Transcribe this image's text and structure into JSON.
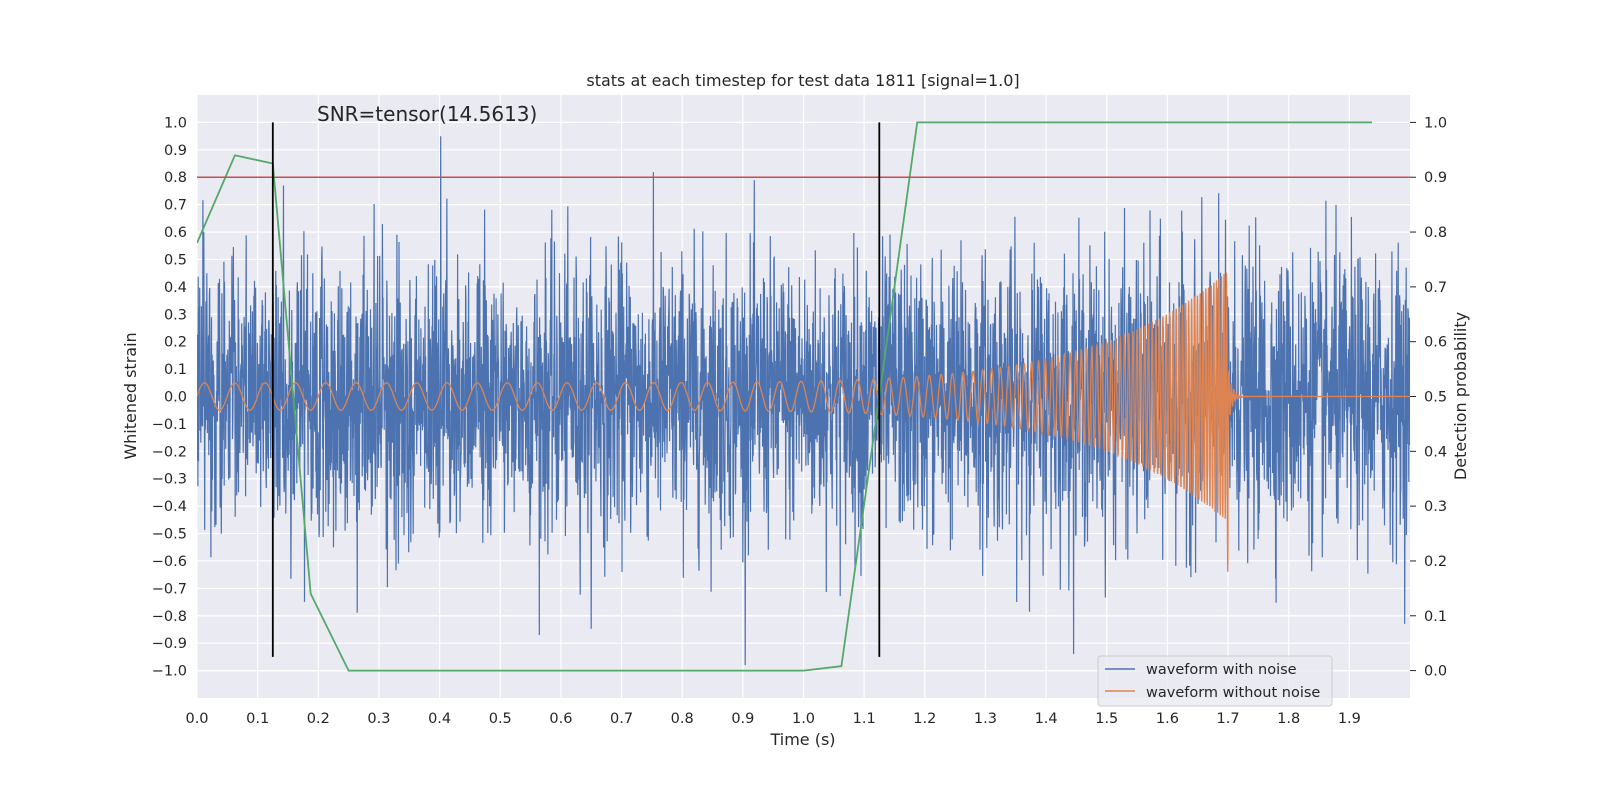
{
  "chart_data": {
    "type": "line",
    "title": "stats at each timestep for test data 1811 [signal=1.0]",
    "annotation": "SNR=tensor(14.5613)",
    "xlabel": "Time (s)",
    "ylabel": "Whitened strain",
    "y2label": "Detection probability",
    "xlim": [
      0.0,
      2.0
    ],
    "ylim": [
      -1.1,
      1.1
    ],
    "y2lim": [
      -0.05,
      1.05
    ],
    "x_ticks": [
      "0.0",
      "0.1",
      "0.2",
      "0.3",
      "0.4",
      "0.5",
      "0.6",
      "0.7",
      "0.8",
      "0.9",
      "1.0",
      "1.1",
      "1.2",
      "1.3",
      "1.4",
      "1.5",
      "1.6",
      "1.7",
      "1.8",
      "1.9"
    ],
    "y_ticks": [
      "1.0",
      "0.9",
      "0.8",
      "0.7",
      "0.6",
      "0.5",
      "0.4",
      "0.3",
      "0.2",
      "0.1",
      "0.0",
      "−0.1",
      "−0.2",
      "−0.3",
      "−0.4",
      "−0.5",
      "−0.6",
      "−0.7",
      "−0.8",
      "−0.9",
      "−1.0"
    ],
    "y2_ticks": [
      "1.0",
      "0.9",
      "0.8",
      "0.7",
      "0.6",
      "0.5",
      "0.4",
      "0.3",
      "0.2",
      "0.1",
      "0.0"
    ],
    "threshold": {
      "y2": 0.9,
      "color": "#c44e52"
    },
    "vlines": [
      {
        "x": 0.125,
        "ymin": -0.95,
        "ymax": 1.0
      },
      {
        "x": 1.125,
        "ymin": -0.95,
        "ymax": 1.0
      }
    ],
    "detection_probability": {
      "color": "#55a868",
      "x": [
        0.0,
        0.0625,
        0.125,
        0.1875,
        0.25,
        0.3125,
        0.375,
        0.4375,
        0.5,
        0.5625,
        0.625,
        0.6875,
        0.75,
        0.8125,
        0.875,
        0.9375,
        1.0,
        1.0625,
        1.125,
        1.1875,
        1.25,
        1.3125,
        1.375,
        1.4375,
        1.5,
        1.5625,
        1.625,
        1.6875,
        1.75,
        1.8125,
        1.875,
        1.9375
      ],
      "values": [
        0.78,
        0.94,
        0.925,
        0.14,
        0.0,
        0.0,
        0.0,
        0.0,
        0.0,
        0.0,
        0.0,
        0.0,
        0.0,
        0.0,
        0.0,
        0.0,
        0.0,
        0.008,
        0.5,
        1.0,
        1.0,
        1.0,
        1.0,
        1.0,
        1.0,
        1.0,
        1.0,
        1.0,
        1.0,
        1.0,
        1.0,
        1.0
      ]
    },
    "series": [
      {
        "name": "waveform with noise",
        "color": "#4c72b0",
        "sample_rate": 2048,
        "t_start": 0.0,
        "t_end": 2.0,
        "std": 0.25,
        "seed": 1811
      },
      {
        "name": "waveform without noise",
        "color": "#dd8452",
        "t_start": 0.0,
        "t_merge": 1.7,
        "t_end": 2.0,
        "amp_start": 0.05,
        "amp_peak": 0.46,
        "amp_min": -0.64,
        "f_start": 20,
        "f_merge": 250
      }
    ],
    "legend": {
      "loc": "lower-right",
      "entries": [
        "waveform with noise",
        "waveform without noise"
      ]
    }
  }
}
